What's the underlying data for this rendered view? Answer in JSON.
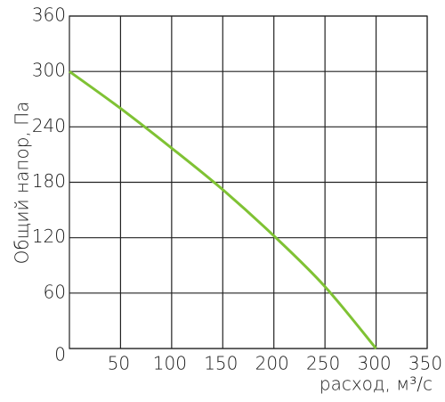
{
  "chart_data": {
    "type": "line",
    "x_label": "расход, м³/с",
    "y_label": "Общий напор, Па",
    "x": [
      0,
      50,
      100,
      150,
      200,
      250,
      300
    ],
    "values": [
      300,
      260,
      217,
      172,
      122,
      67,
      0
    ],
    "color": "#7fc234",
    "xlim": [
      0,
      350
    ],
    "xticks": [
      50,
      100,
      150,
      200,
      250,
      300,
      350
    ],
    "ylim": [
      0,
      360
    ],
    "yticks": [
      0,
      60,
      120,
      180,
      240,
      300,
      360
    ],
    "grid": true
  }
}
